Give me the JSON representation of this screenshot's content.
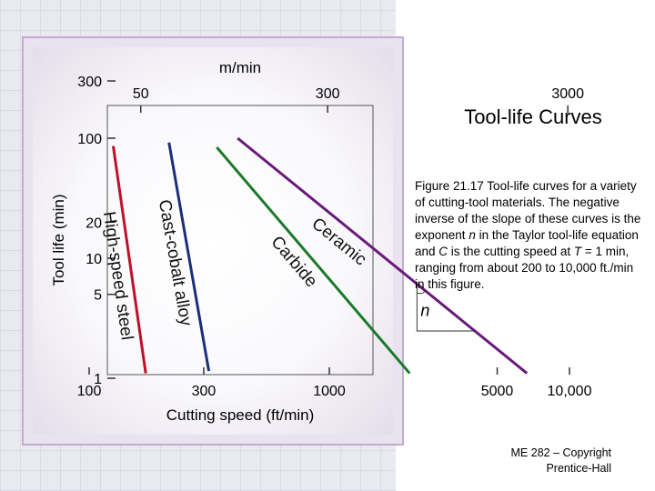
{
  "slide": {
    "title": "Tool-life Curves",
    "caption_parts": [
      "Figure 21.17  Tool-life curves for a variety of cutting-tool materials. The negative inverse of the slope of these curves is the exponent ",
      "n",
      " in the Taylor tool-life equation and ",
      "C",
      " is the cutting speed at ",
      "T",
      " = 1 min, ranging from about 200 to 10,000 ft./min in this figure."
    ],
    "footer_line1": "ME 282 – Copyright",
    "footer_line2": "Prentice-Hall"
  },
  "chart_data": {
    "type": "line",
    "title": "",
    "xlabel": "Cutting speed (ft/min)",
    "ylabel": "Tool life (min)",
    "x_scale": "log",
    "y_scale": "log",
    "xlim": [
      100,
      12000
    ],
    "ylim": [
      1,
      300
    ],
    "x_ticks": [
      100,
      300,
      1000,
      5000,
      10000
    ],
    "x_tick_labels": [
      "100",
      "300",
      "1000",
      "5000",
      "10,000"
    ],
    "y_ticks": [
      1,
      5,
      10,
      20,
      100,
      300
    ],
    "y_tick_labels": [
      "1",
      "5",
      "10",
      "20",
      "100",
      "300"
    ],
    "secondary_x": {
      "label": "m/min",
      "ticks_ftmin": [
        164,
        984,
        9843
      ],
      "tick_labels": [
        "50",
        "300",
        "3000"
      ]
    },
    "series": [
      {
        "name": "High-speed steel",
        "color": "#c0102a",
        "points": [
          [
            126,
            86
          ],
          [
            172,
            1.1
          ]
        ]
      },
      {
        "name": "Cast-cobalt alloy",
        "color": "#1a2e7a",
        "points": [
          [
            215,
            92
          ],
          [
            315,
            1.15
          ]
        ]
      },
      {
        "name": "Carbide",
        "color": "#1a7a2a",
        "points": [
          [
            340,
            84
          ],
          [
            2160,
            1.1
          ]
        ]
      },
      {
        "name": "Ceramic",
        "color": "#6a1a7a",
        "points": [
          [
            415,
            100
          ],
          [
            6650,
            1.1
          ]
        ]
      }
    ],
    "annotation": {
      "text": "n"
    }
  }
}
